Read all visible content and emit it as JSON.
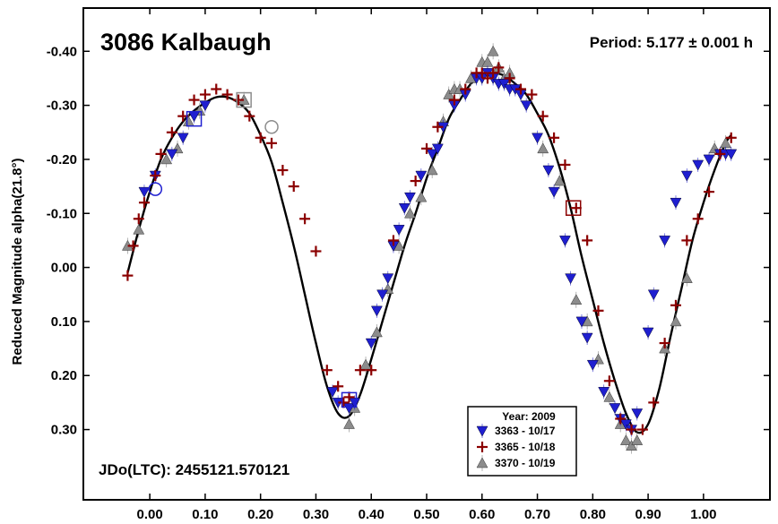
{
  "chart_data": {
    "type": "scatter",
    "title": "3086 Kalbaugh",
    "period_label": "Period: 5.177 ± 0.001 h",
    "epoch_label": "JDo(LTC): 2455121.570121",
    "ylabel": "Reduced Magnitude alpha(21.8°)",
    "xlabel": "",
    "xlim": [
      -0.12,
      1.12
    ],
    "ylim": [
      0.43,
      -0.48
    ],
    "y_inverted": true,
    "x_ticks": [
      0.0,
      0.1,
      0.2,
      0.3,
      0.4,
      0.5,
      0.6,
      0.7,
      0.8,
      0.9,
      1.0
    ],
    "x_tick_labels": [
      "0.00",
      "0.10",
      "0.20",
      "0.30",
      "0.40",
      "0.50",
      "0.60",
      "0.70",
      "0.80",
      "0.90",
      "1.00"
    ],
    "y_ticks": [
      -0.4,
      -0.3,
      -0.2,
      -0.1,
      0.0,
      0.1,
      0.2,
      0.3
    ],
    "y_tick_labels": [
      "-0.40",
      "-0.30",
      "-0.20",
      "-0.10",
      "0.00",
      "0.10",
      "0.20",
      "0.30"
    ],
    "grid": false,
    "legend": {
      "title": "Year: 2009",
      "placement": "bottom-right",
      "entries": [
        {
          "label": "3363 - 10/17",
          "marker": "triangle-down",
          "color": "#1f1fd0"
        },
        {
          "label": "3365 - 10/18",
          "marker": "plus",
          "color": "#8b0000"
        },
        {
          "label": "3370 - 10/19",
          "marker": "triangle-up",
          "color": "#8c8c8c"
        }
      ]
    },
    "fit_curve": {
      "name": "Fourier fit",
      "color": "#000000",
      "x": [
        -0.04,
        -0.02,
        0.0,
        0.02,
        0.04,
        0.06,
        0.08,
        0.1,
        0.12,
        0.14,
        0.16,
        0.18,
        0.2,
        0.22,
        0.24,
        0.26,
        0.28,
        0.3,
        0.32,
        0.34,
        0.36,
        0.38,
        0.4,
        0.42,
        0.44,
        0.46,
        0.48,
        0.5,
        0.52,
        0.54,
        0.56,
        0.58,
        0.6,
        0.62,
        0.64,
        0.66,
        0.68,
        0.7,
        0.72,
        0.74,
        0.76,
        0.78,
        0.8,
        0.82,
        0.84,
        0.86,
        0.88,
        0.9,
        0.92,
        0.94,
        0.96,
        0.98,
        1.0,
        1.02,
        1.04,
        1.05
      ],
      "y": [
        0.01,
        -0.07,
        -0.14,
        -0.2,
        -0.24,
        -0.27,
        -0.29,
        -0.305,
        -0.315,
        -0.315,
        -0.305,
        -0.285,
        -0.245,
        -0.195,
        -0.12,
        -0.04,
        0.05,
        0.14,
        0.22,
        0.27,
        0.275,
        0.235,
        0.17,
        0.1,
        0.03,
        -0.04,
        -0.1,
        -0.165,
        -0.22,
        -0.275,
        -0.31,
        -0.34,
        -0.355,
        -0.36,
        -0.355,
        -0.34,
        -0.32,
        -0.285,
        -0.245,
        -0.185,
        -0.11,
        -0.02,
        0.06,
        0.14,
        0.21,
        0.27,
        0.305,
        0.29,
        0.225,
        0.13,
        0.04,
        -0.05,
        -0.12,
        -0.18,
        -0.23,
        -0.245
      ]
    },
    "series": [
      {
        "name": "3363 - 10/17",
        "marker": "triangle-down",
        "color": "#1f1fd0",
        "x": [
          -0.01,
          0.01,
          0.04,
          0.06,
          0.08,
          0.1,
          0.33,
          0.34,
          0.36,
          0.37,
          0.4,
          0.41,
          0.42,
          0.43,
          0.44,
          0.45,
          0.46,
          0.47,
          0.49,
          0.51,
          0.52,
          0.53,
          0.55,
          0.57,
          0.59,
          0.6,
          0.61,
          0.62,
          0.63,
          0.64,
          0.65,
          0.66,
          0.67,
          0.68,
          0.7,
          0.72,
          0.73,
          0.75,
          0.76,
          0.78,
          0.79,
          0.8,
          0.82,
          0.84,
          0.85,
          0.86,
          0.87,
          0.88,
          0.9,
          0.91,
          0.93,
          0.95,
          0.97,
          0.99,
          1.01,
          1.03,
          1.04,
          1.05
        ],
        "y": [
          -0.14,
          -0.17,
          -0.21,
          -0.24,
          -0.28,
          -0.3,
          0.23,
          0.25,
          0.26,
          0.25,
          0.14,
          0.08,
          0.05,
          0.02,
          -0.04,
          -0.07,
          -0.11,
          -0.13,
          -0.17,
          -0.21,
          -0.22,
          -0.26,
          -0.3,
          -0.32,
          -0.35,
          -0.35,
          -0.36,
          -0.35,
          -0.34,
          -0.34,
          -0.33,
          -0.33,
          -0.32,
          -0.3,
          -0.24,
          -0.18,
          -0.14,
          -0.05,
          0.02,
          0.1,
          0.13,
          0.18,
          0.23,
          0.26,
          0.28,
          0.29,
          0.3,
          0.27,
          0.12,
          0.05,
          -0.05,
          -0.12,
          -0.17,
          -0.19,
          -0.2,
          -0.21,
          -0.21,
          -0.21
        ]
      },
      {
        "name": "3365 - 10/18",
        "marker": "plus",
        "color": "#8b0000",
        "x": [
          -0.04,
          -0.03,
          -0.02,
          -0.01,
          0.01,
          0.02,
          0.04,
          0.06,
          0.08,
          0.1,
          0.12,
          0.14,
          0.16,
          0.18,
          0.2,
          0.22,
          0.24,
          0.26,
          0.28,
          0.3,
          0.32,
          0.34,
          0.35,
          0.36,
          0.38,
          0.4,
          0.44,
          0.48,
          0.5,
          0.52,
          0.55,
          0.57,
          0.59,
          0.6,
          0.61,
          0.62,
          0.63,
          0.65,
          0.67,
          0.69,
          0.71,
          0.73,
          0.75,
          0.77,
          0.79,
          0.81,
          0.83,
          0.85,
          0.87,
          0.89,
          0.91,
          0.93,
          0.95,
          0.97,
          0.99,
          1.01,
          1.03,
          1.05
        ],
        "y": [
          0.015,
          -0.04,
          -0.09,
          -0.12,
          -0.17,
          -0.21,
          -0.25,
          -0.28,
          -0.31,
          -0.32,
          -0.33,
          -0.32,
          -0.31,
          -0.28,
          -0.24,
          -0.23,
          -0.18,
          -0.15,
          -0.09,
          -0.03,
          0.19,
          0.22,
          0.25,
          0.24,
          0.19,
          0.19,
          -0.05,
          -0.16,
          -0.22,
          -0.26,
          -0.31,
          -0.33,
          -0.36,
          -0.36,
          -0.35,
          -0.36,
          -0.37,
          -0.35,
          -0.33,
          -0.32,
          -0.28,
          -0.24,
          -0.19,
          -0.11,
          -0.05,
          0.08,
          0.21,
          0.28,
          0.3,
          0.3,
          0.25,
          0.14,
          0.07,
          -0.05,
          -0.09,
          -0.14,
          -0.21,
          -0.24
        ]
      },
      {
        "name": "3370 - 10/19",
        "marker": "triangle-up",
        "color": "#8c8c8c",
        "x": [
          -0.04,
          -0.02,
          0.03,
          0.05,
          0.07,
          0.09,
          0.17,
          0.36,
          0.37,
          0.39,
          0.41,
          0.43,
          0.45,
          0.47,
          0.49,
          0.51,
          0.53,
          0.54,
          0.55,
          0.56,
          0.58,
          0.6,
          0.61,
          0.62,
          0.63,
          0.64,
          0.65,
          0.71,
          0.74,
          0.77,
          0.79,
          0.81,
          0.83,
          0.85,
          0.86,
          0.87,
          0.88,
          0.93,
          0.95,
          0.97,
          1.02,
          1.04
        ],
        "y": [
          -0.04,
          -0.07,
          -0.2,
          -0.22,
          -0.27,
          -0.29,
          -0.31,
          0.29,
          0.26,
          0.18,
          0.12,
          0.04,
          -0.04,
          -0.1,
          -0.13,
          -0.18,
          -0.27,
          -0.32,
          -0.33,
          -0.33,
          -0.35,
          -0.38,
          -0.38,
          -0.4,
          -0.37,
          -0.35,
          -0.36,
          -0.22,
          -0.16,
          0.06,
          0.1,
          0.17,
          0.24,
          0.29,
          0.32,
          0.33,
          0.32,
          0.15,
          0.1,
          0.02,
          -0.22,
          -0.23
        ]
      }
    ],
    "open_markers": [
      {
        "shape": "circle",
        "color": "#1f1fd0",
        "x": 0.01,
        "y": -0.145
      },
      {
        "shape": "square",
        "color": "#1f1fd0",
        "x": 0.08,
        "y": -0.275
      },
      {
        "shape": "square",
        "color": "#8c8c8c",
        "x": 0.17,
        "y": -0.31
      },
      {
        "shape": "circle",
        "color": "#8c8c8c",
        "x": 0.22,
        "y": -0.26
      },
      {
        "shape": "square",
        "color": "#8b0000",
        "x": 0.765,
        "y": -0.11
      },
      {
        "shape": "square",
        "color": "#1f1fd0",
        "x": 0.36,
        "y": 0.245
      }
    ]
  }
}
